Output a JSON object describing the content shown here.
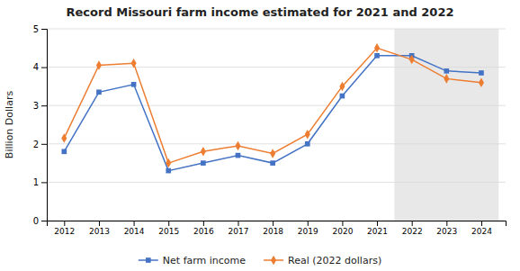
{
  "chart_data": {
    "type": "line",
    "title": "Record Missouri farm income estimated for 2021 and 2022",
    "ylabel": "Billion Dollars",
    "x": [
      2012,
      2013,
      2014,
      2015,
      2016,
      2017,
      2018,
      2019,
      2020,
      2021,
      2022,
      2023,
      2024
    ],
    "series": [
      {
        "name": "Net farm income",
        "color": "#4472C4",
        "marker": "square",
        "values": [
          1.8,
          3.35,
          3.55,
          1.3,
          1.5,
          1.7,
          1.5,
          2.0,
          3.25,
          4.3,
          4.3,
          3.9,
          3.85
        ]
      },
      {
        "name": "Real (2022 dollars)",
        "color": "#ED7D31",
        "marker": "diamond",
        "values": [
          2.15,
          4.05,
          4.1,
          1.5,
          1.8,
          1.95,
          1.75,
          2.25,
          3.5,
          4.5,
          4.2,
          3.7,
          3.6
        ]
      }
    ],
    "bands": [
      {
        "x": [
          2021.5,
          2024.5
        ],
        "color": "#d8d8d8"
      }
    ],
    "xlim": [
      2011.5,
      2024.7
    ],
    "xticks": [
      2012,
      2013,
      2014,
      2015,
      2016,
      2017,
      2018,
      2019,
      2020,
      2021,
      2022,
      2023,
      2024
    ],
    "ylim": [
      0,
      5
    ],
    "yticks": [
      0,
      1,
      2,
      3,
      4,
      5
    ],
    "grid": true,
    "legend": "bottom"
  }
}
